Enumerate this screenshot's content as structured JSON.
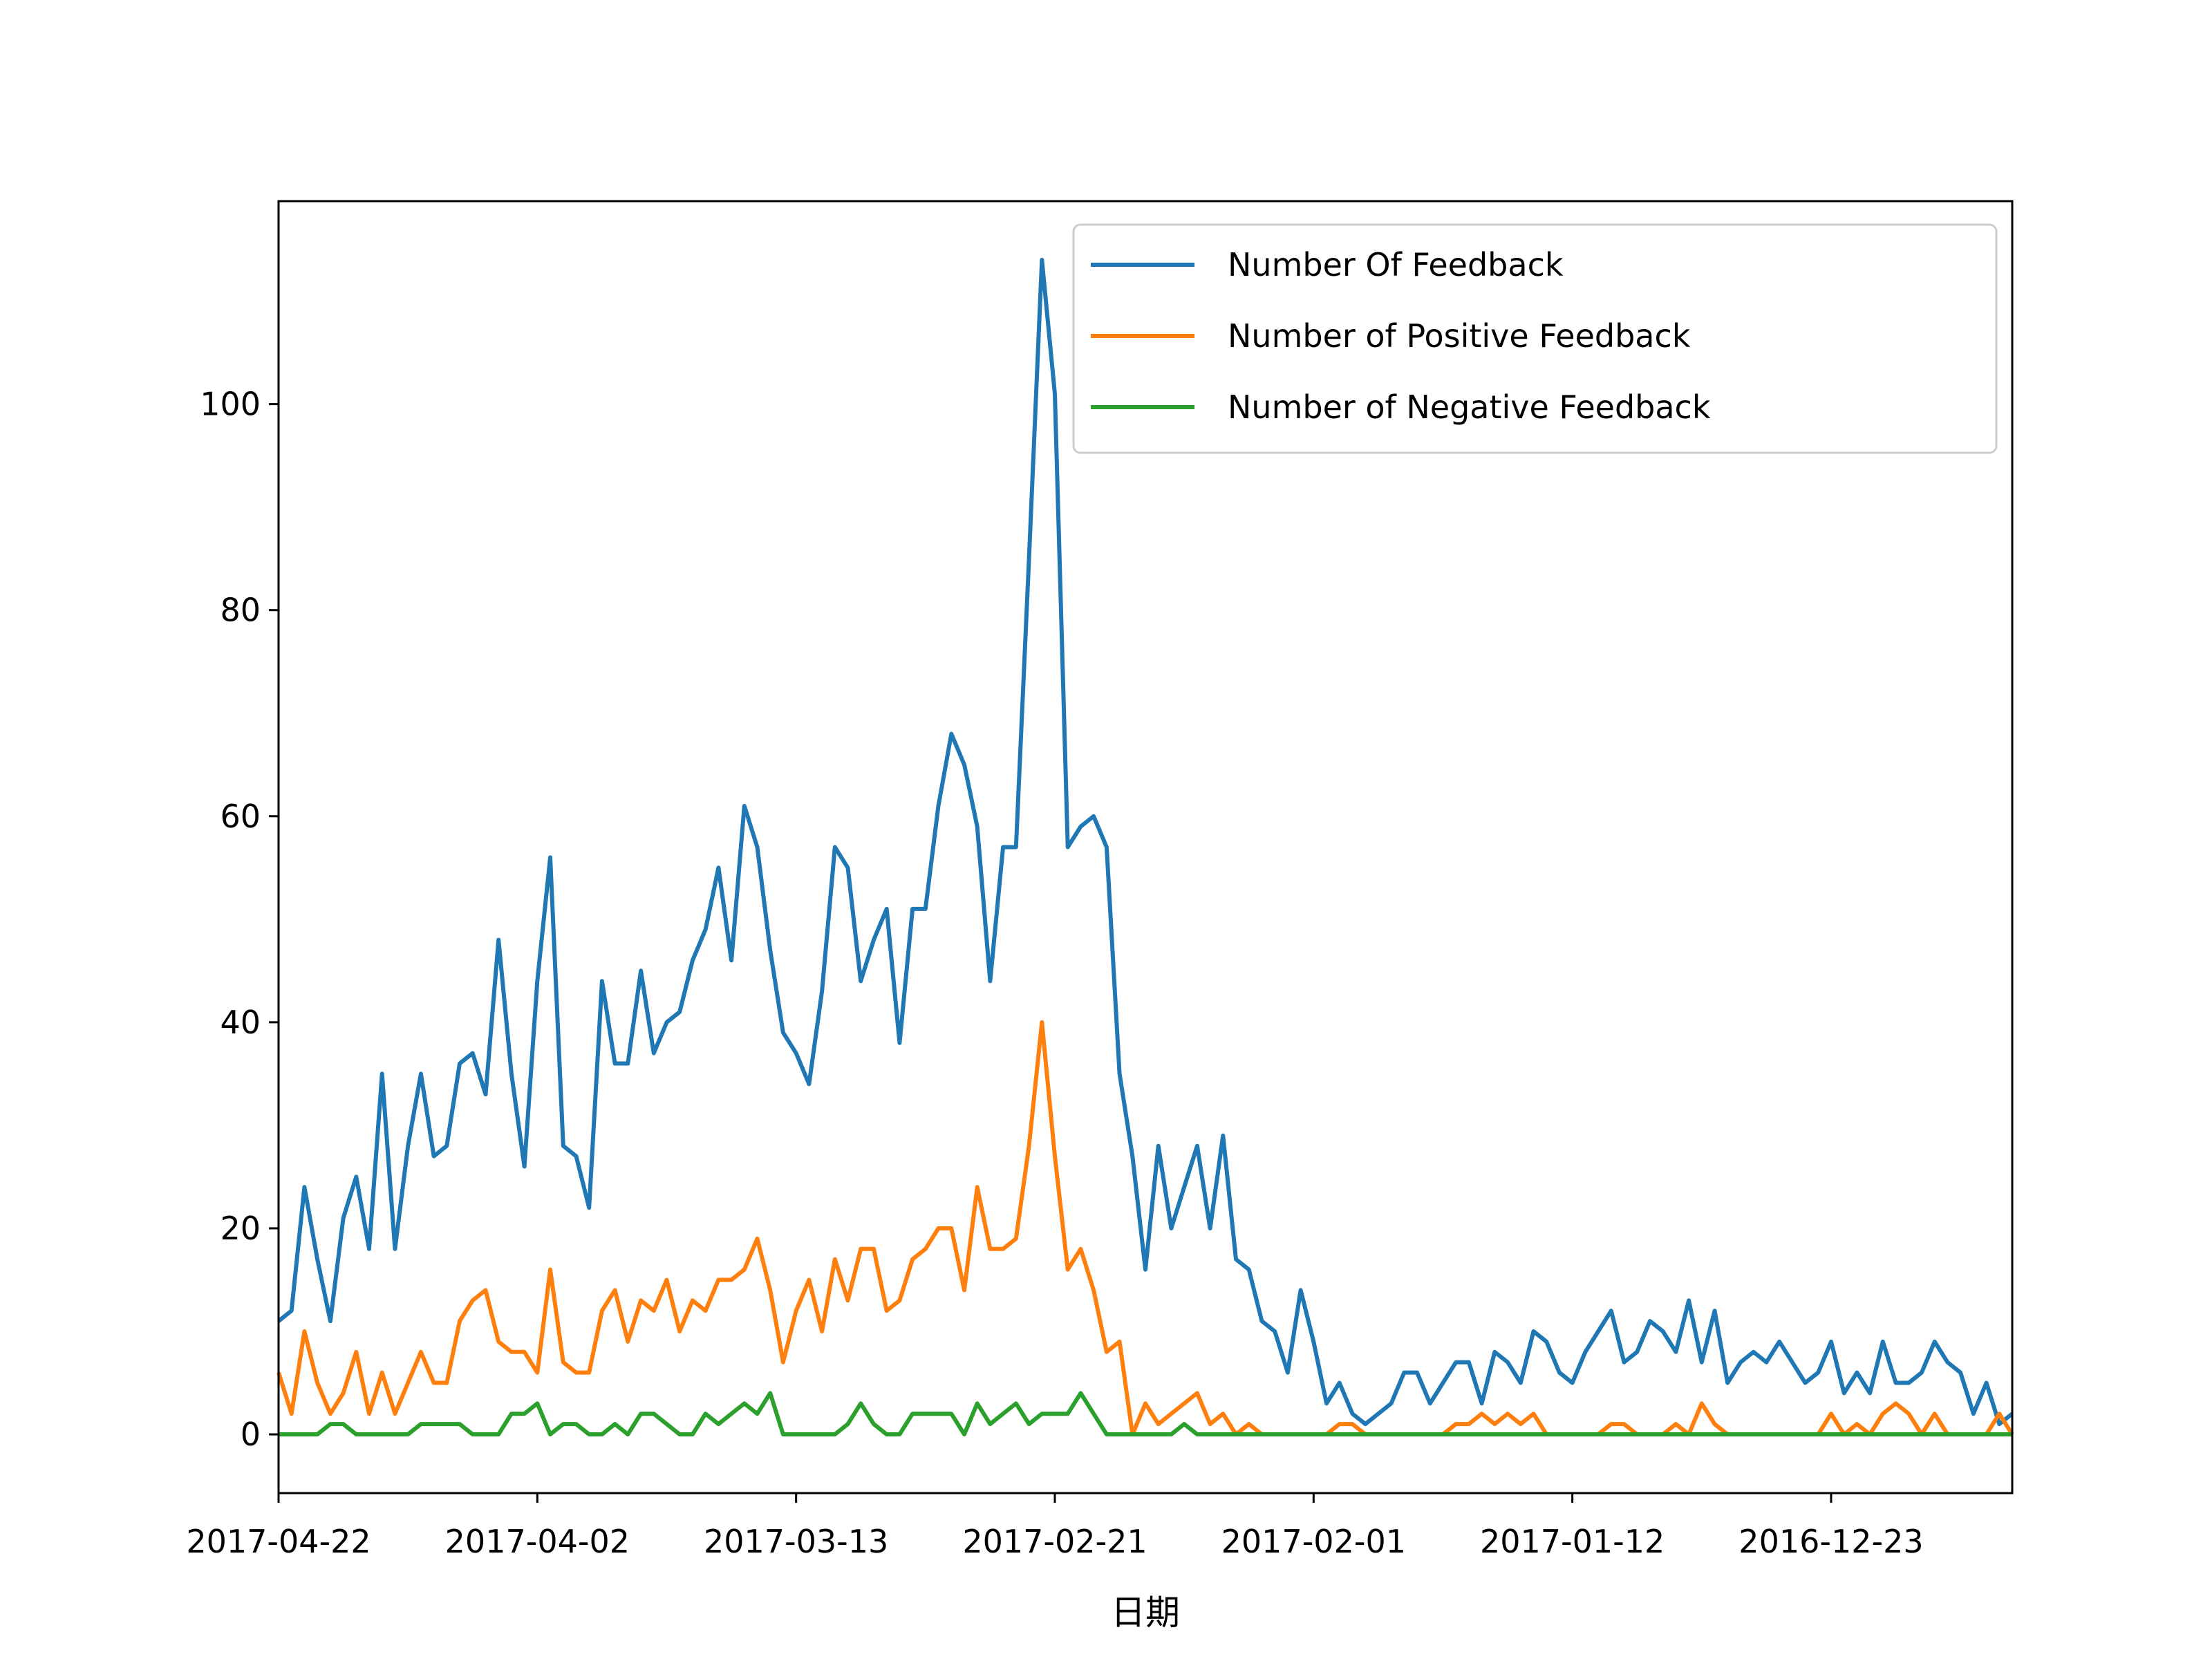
{
  "chart_data": {
    "type": "line",
    "title": "",
    "xlabel": "日期",
    "ylabel": "",
    "x_order": "descending dates (newest on left)",
    "x_tick_labels": [
      "2017-04-22",
      "2017-04-02",
      "2017-03-13",
      "2017-02-21",
      "2017-02-01",
      "2017-01-12",
      "2016-12-23"
    ],
    "y_ticks": [
      0,
      20,
      40,
      60,
      80,
      100
    ],
    "ylim": [
      -5.7,
      119.7
    ],
    "legend": {
      "placement": "top-right"
    },
    "grid": false,
    "series": [
      {
        "name": "Number Of Feedback",
        "color": "#1f77b4",
        "values": [
          11,
          12,
          24,
          17,
          11,
          21,
          25,
          18,
          35,
          18,
          28,
          35,
          27,
          28,
          36,
          37,
          33,
          48,
          35,
          26,
          44,
          56,
          28,
          27,
          22,
          44,
          36,
          36,
          45,
          37,
          40,
          41,
          46,
          49,
          55,
          46,
          61,
          57,
          47,
          39,
          37,
          34,
          43,
          57,
          55,
          44,
          48,
          51,
          38,
          51,
          51,
          61,
          68,
          65,
          59,
          44,
          57,
          57,
          85,
          114,
          101,
          57,
          59,
          60,
          57,
          35,
          27,
          16,
          28,
          20,
          24,
          28,
          20,
          29,
          17,
          16,
          11,
          10,
          6,
          14,
          9,
          3,
          5,
          2,
          1,
          2,
          3,
          6,
          6,
          3,
          5,
          7,
          7,
          3,
          8,
          7,
          5,
          10,
          9,
          6,
          5,
          8,
          10,
          12,
          7,
          8,
          11,
          10,
          8,
          13,
          7,
          12,
          5,
          7,
          8,
          7,
          9,
          7,
          5,
          6,
          9,
          4,
          6,
          4,
          9,
          5,
          5,
          6,
          9,
          7,
          6,
          2,
          5,
          1,
          2
        ]
      },
      {
        "name": "Number of Positive Feedback",
        "color": "#ff7f0e",
        "values": [
          6,
          2,
          10,
          5,
          2,
          4,
          8,
          2,
          6,
          2,
          5,
          8,
          5,
          5,
          11,
          13,
          14,
          9,
          8,
          8,
          6,
          16,
          7,
          6,
          6,
          12,
          14,
          9,
          13,
          12,
          15,
          10,
          13,
          12,
          15,
          15,
          16,
          19,
          14,
          7,
          12,
          15,
          10,
          17,
          13,
          18,
          18,
          12,
          13,
          17,
          18,
          20,
          20,
          14,
          24,
          18,
          18,
          19,
          28,
          40,
          27,
          16,
          18,
          14,
          8,
          9,
          0,
          3,
          1,
          2,
          3,
          4,
          1,
          2,
          0,
          1,
          0,
          0,
          0,
          0,
          0,
          0,
          1,
          1,
          0,
          0,
          0,
          0,
          0,
          0,
          0,
          1,
          1,
          2,
          1,
          2,
          1,
          2,
          0,
          0,
          0,
          0,
          0,
          1,
          1,
          0,
          0,
          0,
          1,
          0,
          3,
          1,
          0,
          0,
          0,
          0,
          0,
          0,
          0,
          0,
          2,
          0,
          1,
          0,
          2,
          3,
          2,
          0,
          2,
          0,
          0,
          0,
          0,
          2,
          0
        ]
      },
      {
        "name": "Number of Negative Feedback",
        "color": "#2ca02c",
        "values": [
          0,
          0,
          0,
          0,
          1,
          1,
          0,
          0,
          0,
          0,
          0,
          1,
          1,
          1,
          1,
          0,
          0,
          0,
          2,
          2,
          3,
          0,
          1,
          1,
          0,
          0,
          1,
          0,
          2,
          2,
          1,
          0,
          0,
          2,
          1,
          2,
          3,
          2,
          4,
          0,
          0,
          0,
          0,
          0,
          1,
          3,
          1,
          0,
          0,
          2,
          2,
          2,
          2,
          0,
          3,
          1,
          2,
          3,
          1,
          2,
          2,
          2,
          4,
          2,
          0,
          0,
          0,
          0,
          0,
          0,
          1,
          0,
          0,
          0,
          0,
          0,
          0,
          0,
          0,
          0,
          0,
          0,
          0,
          0,
          0,
          0,
          0,
          0,
          0,
          0,
          0,
          0,
          0,
          0,
          0,
          0,
          0,
          0,
          0,
          0,
          0,
          0,
          0,
          0,
          0,
          0,
          0,
          0,
          0,
          0,
          0,
          0,
          0,
          0,
          0,
          0,
          0,
          0,
          0,
          0,
          0,
          0,
          0,
          0,
          0,
          0,
          0,
          0,
          0,
          0,
          0,
          0,
          0,
          0,
          0
        ]
      }
    ]
  }
}
